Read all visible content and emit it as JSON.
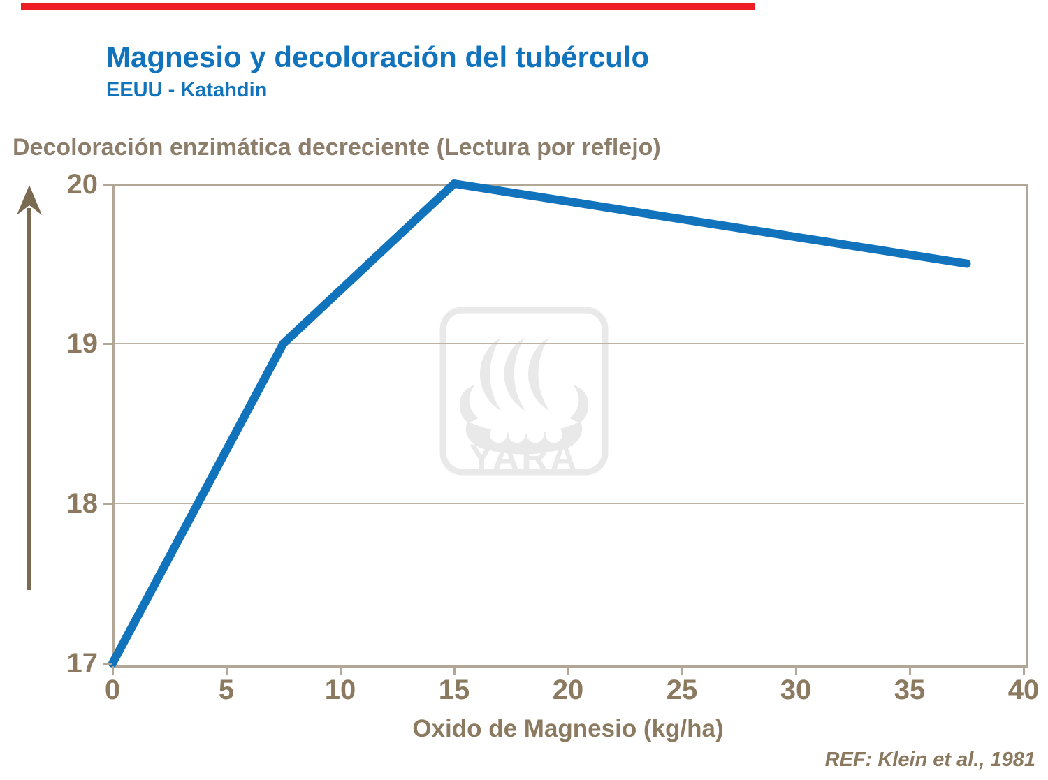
{
  "header": {
    "title": "Magnesio y decoloración del tubérculo",
    "subtitle": "EEUU - Katahdin",
    "title_color": "#1173BC",
    "red_bar_color": "#EE1C25"
  },
  "chart_data": {
    "type": "line",
    "y_axis_title": "Decoloración enzimática decreciente (Lectura por reflejo)",
    "x_axis_title": "Oxido de Magnesio (kg/ha)",
    "xlim": [
      0,
      40
    ],
    "ylim": [
      17,
      20
    ],
    "x_ticks": [
      "0",
      "5",
      "10",
      "15",
      "20",
      "25",
      "30",
      "35",
      "40"
    ],
    "y_ticks": [
      "20",
      "19",
      "18",
      "17"
    ],
    "grid": "horizontal gridlines at 18 and 19",
    "legend": "none",
    "axis_color": "#8B7A60",
    "series": [
      {
        "name": "Decoloración enzimática",
        "color": "#1173BC",
        "points": [
          [
            0,
            17
          ],
          [
            7.5,
            19
          ],
          [
            15,
            20
          ],
          [
            37.5,
            19.5
          ]
        ]
      }
    ]
  },
  "watermark": {
    "text": "YARA",
    "color": "#E9E9E9"
  },
  "footer": {
    "reference": "REF: Klein et al., 1981"
  }
}
